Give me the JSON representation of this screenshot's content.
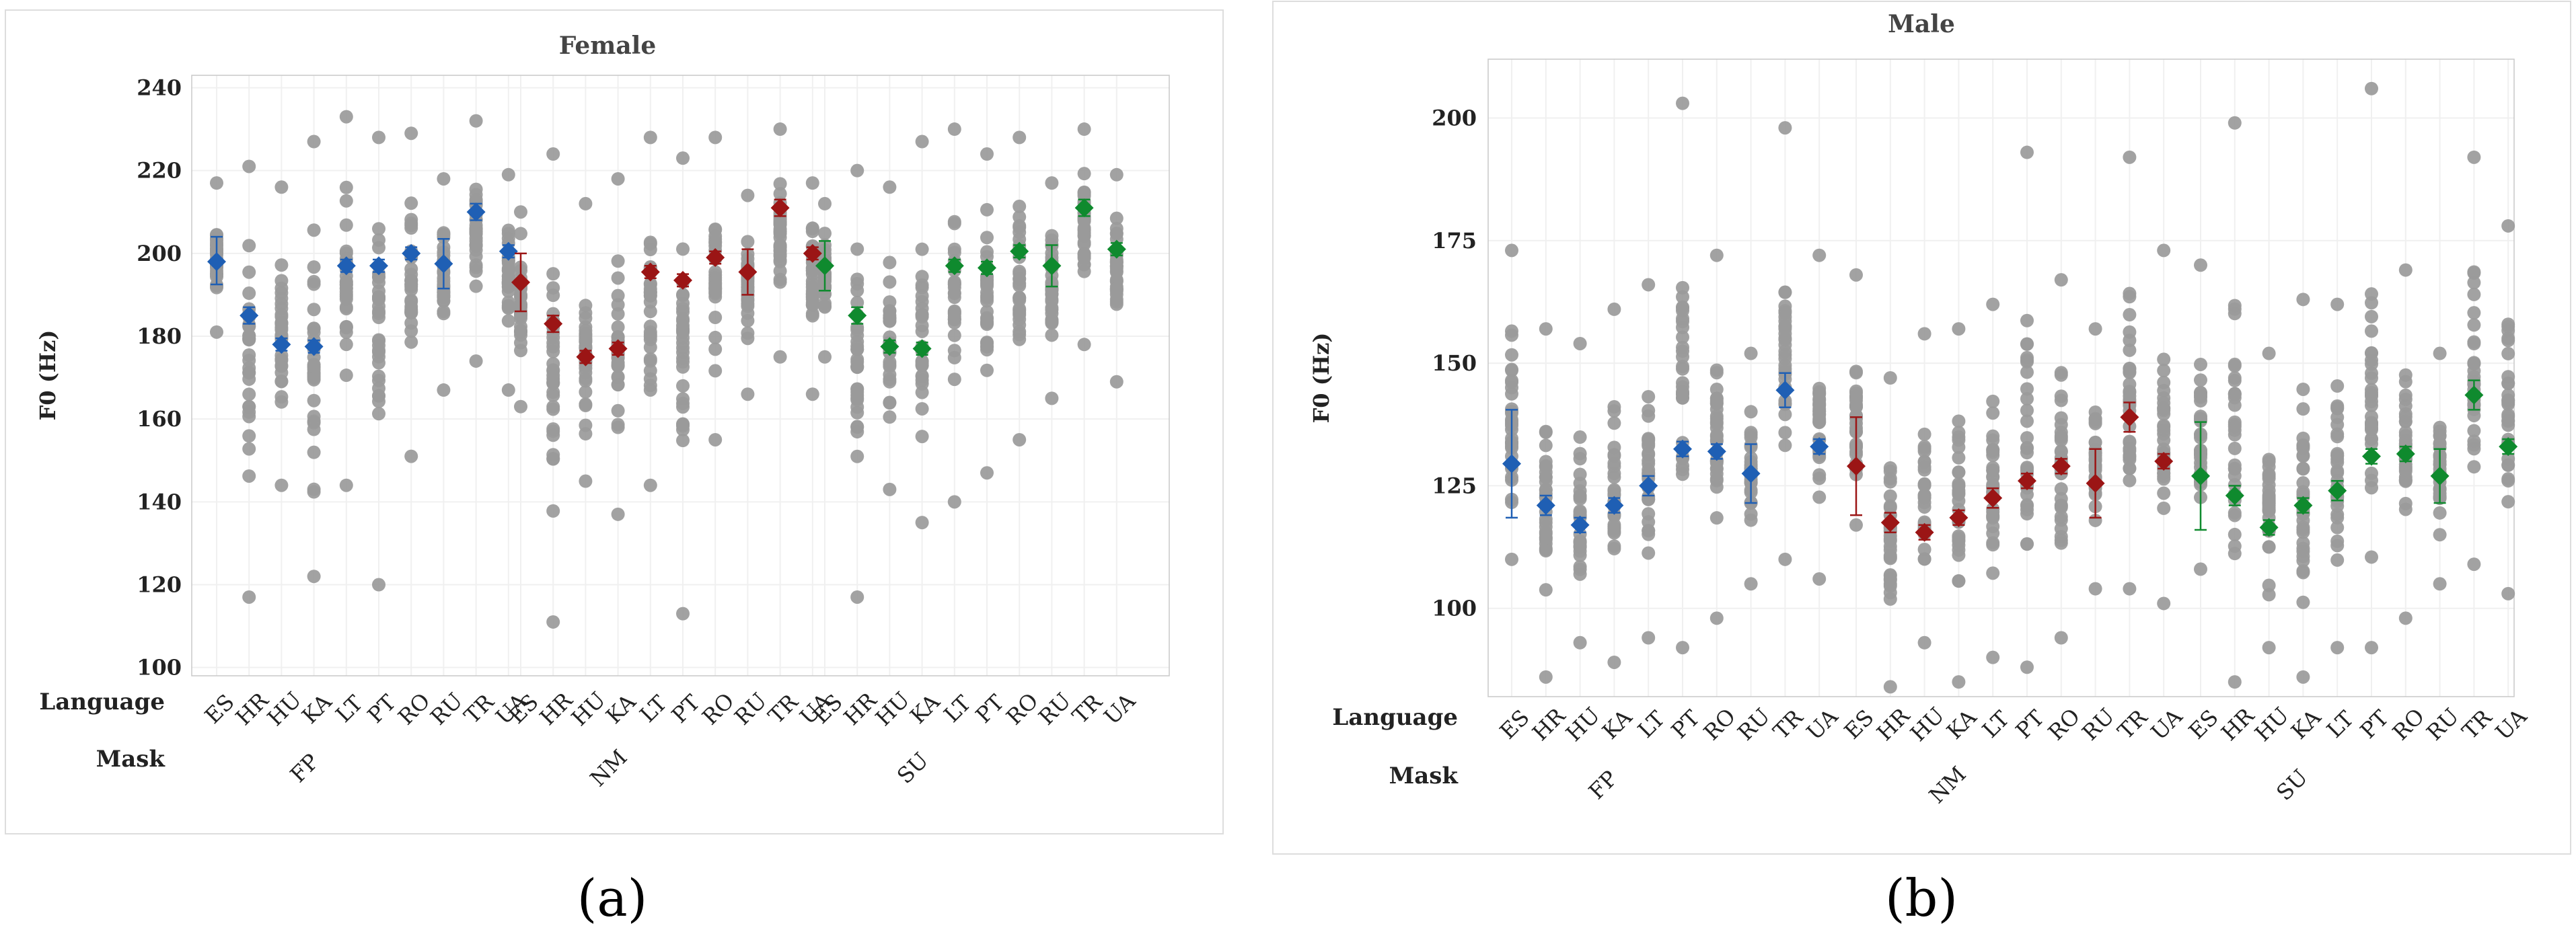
{
  "colors": {
    "FP": "#1f5fb4",
    "NM": "#9b1515",
    "SU": "#0f8a2e",
    "points": "#9a9a9a",
    "grid": "#f0f0f0",
    "panel_border": "#dddddd",
    "frame": "#c8c8c8"
  },
  "chart_data": [
    {
      "type": "scatter",
      "subtype": "interval-dot-plot",
      "panel_label": "(a)",
      "title": "Female",
      "ylabel": "F0 (Hz)",
      "ylim": [
        98,
        243
      ],
      "yticks": [
        100,
        120,
        140,
        160,
        180,
        200,
        220,
        240
      ],
      "grid": true,
      "row_labels": {
        "language": "Language",
        "mask": "Mask"
      },
      "languages": [
        "ES",
        "HR",
        "HU",
        "KA",
        "LT",
        "PT",
        "RO",
        "RU",
        "TR",
        "UA"
      ],
      "groups": [
        "FP",
        "NM",
        "SU"
      ],
      "series": [
        {
          "name": "FP",
          "means": [
            198,
            185,
            178,
            177.5,
            197,
            197,
            200,
            197.5,
            210,
            200.5
          ],
          "ci_low": [
            192.5,
            183,
            176.5,
            176,
            195.5,
            195.5,
            198.5,
            191.5,
            208,
            199
          ],
          "ci_high": [
            204,
            187,
            179.5,
            179,
            198.5,
            198.5,
            201.5,
            203.5,
            212,
            202
          ],
          "ranges": [
            [
              181,
              217
            ],
            [
              117,
              221
            ],
            [
              144,
              216
            ],
            [
              122,
              227
            ],
            [
              144,
              233
            ],
            [
              120,
              228
            ],
            [
              151,
              229
            ],
            [
              167,
              218
            ],
            [
              174,
              232
            ],
            [
              167,
              219
            ]
          ]
        },
        {
          "name": "NM",
          "means": [
            193,
            183,
            175,
            177,
            195.5,
            193.5,
            199,
            195.5,
            211,
            200
          ],
          "ci_low": [
            186,
            181,
            173.5,
            175.5,
            194,
            192,
            197.5,
            190,
            209,
            198.5
          ],
          "ci_high": [
            200,
            185,
            176.5,
            178.5,
            197,
            195,
            200.5,
            201,
            213,
            201.5
          ],
          "ranges": [
            [
              163,
              210
            ],
            [
              111,
              224
            ],
            [
              145,
              212
            ],
            [
              137,
              218
            ],
            [
              144,
              228
            ],
            [
              113,
              223
            ],
            [
              155,
              228
            ],
            [
              166,
              214
            ],
            [
              175,
              230
            ],
            [
              166,
              217
            ]
          ]
        },
        {
          "name": "SU",
          "means": [
            197,
            185,
            177.5,
            177,
            197,
            196.5,
            200.5,
            197,
            211,
            201
          ],
          "ci_low": [
            191,
            183,
            176,
            175.5,
            195.5,
            195,
            199,
            192,
            209,
            199.5
          ],
          "ci_high": [
            203,
            187,
            179,
            178.5,
            198.5,
            198,
            202,
            202,
            213,
            202.5
          ],
          "ranges": [
            [
              175,
              212
            ],
            [
              117,
              220
            ],
            [
              143,
              216
            ],
            [
              135,
              227
            ],
            [
              140,
              230
            ],
            [
              147,
              224
            ],
            [
              155,
              228
            ],
            [
              165,
              217
            ],
            [
              178,
              230
            ],
            [
              169,
              219
            ]
          ]
        }
      ]
    },
    {
      "type": "scatter",
      "subtype": "interval-dot-plot",
      "panel_label": "(b)",
      "title": "Male",
      "ylabel": "F0 (Hz)",
      "ylim": [
        82,
        212
      ],
      "yticks": [
        100,
        125,
        150,
        175,
        200
      ],
      "grid": true,
      "row_labels": {
        "language": "Language",
        "mask": "Mask"
      },
      "languages": [
        "ES",
        "HR",
        "HU",
        "KA",
        "LT",
        "PT",
        "RO",
        "RU",
        "TR",
        "UA"
      ],
      "groups": [
        "FP",
        "NM",
        "SU"
      ],
      "series": [
        {
          "name": "FP",
          "means": [
            129.5,
            121,
            117,
            121,
            125,
            132.5,
            132,
            127.5,
            144.5,
            133
          ],
          "ci_low": [
            118.5,
            119,
            115.5,
            119.5,
            123,
            131,
            130.5,
            121.5,
            141,
            131.5
          ],
          "ci_high": [
            140.5,
            123,
            118.5,
            122.5,
            127,
            134,
            133.5,
            133.5,
            148,
            134.5
          ],
          "ranges": [
            [
              110,
              173
            ],
            [
              86,
              157
            ],
            [
              93,
              154
            ],
            [
              89,
              161
            ],
            [
              94,
              166
            ],
            [
              92,
              203
            ],
            [
              98,
              172
            ],
            [
              105,
              152
            ],
            [
              110,
              198
            ],
            [
              106,
              172
            ]
          ]
        },
        {
          "name": "NM",
          "means": [
            129,
            117.5,
            115.5,
            118.5,
            122.5,
            126,
            129,
            125.5,
            139,
            130
          ],
          "ci_low": [
            119,
            115.5,
            114,
            117,
            120.5,
            124.5,
            127.5,
            118.5,
            136,
            128.5
          ],
          "ci_high": [
            139,
            119.5,
            117,
            120,
            124.5,
            127.5,
            130.5,
            132.5,
            142,
            131.5
          ],
          "ranges": [
            [
              117,
              168
            ],
            [
              84,
              147
            ],
            [
              93,
              156
            ],
            [
              85,
              157
            ],
            [
              90,
              162
            ],
            [
              88,
              193
            ],
            [
              94,
              167
            ],
            [
              104,
              157
            ],
            [
              104,
              192
            ],
            [
              101,
              173
            ]
          ]
        },
        {
          "name": "SU",
          "means": [
            127,
            123,
            116.5,
            121,
            124,
            131,
            131.5,
            127,
            143.5,
            133
          ],
          "ci_low": [
            116,
            121,
            115,
            119.5,
            122,
            129.5,
            130,
            121.5,
            140.5,
            131.5
          ],
          "ci_high": [
            138,
            125,
            118,
            122.5,
            126,
            132.5,
            133,
            132.5,
            146.5,
            134.5
          ],
          "ranges": [
            [
              108,
              170
            ],
            [
              85,
              199
            ],
            [
              92,
              152
            ],
            [
              86,
              163
            ],
            [
              92,
              162
            ],
            [
              92,
              206
            ],
            [
              98,
              169
            ],
            [
              105,
              152
            ],
            [
              109,
              192
            ],
            [
              103,
              178
            ]
          ]
        }
      ]
    }
  ]
}
